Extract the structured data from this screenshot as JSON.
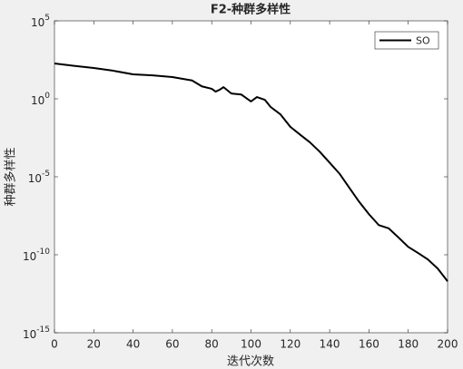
{
  "chart_data": {
    "type": "line",
    "title": "F2-种群多样性",
    "x_label": "迭代次数",
    "y_label": "种群多样性",
    "log_y": true,
    "legend_position": "upper right",
    "xlim": [
      0,
      200
    ],
    "xticks": [
      0,
      20,
      40,
      60,
      80,
      100,
      120,
      140,
      160,
      180,
      200
    ],
    "ylim": [
      1e-15,
      100000
    ],
    "yticks": [
      {
        "value": 1e-15,
        "label": "10^-15"
      },
      {
        "value": 1e-10,
        "label": "10^-10"
      },
      {
        "value": 1e-05,
        "label": "10^-5"
      },
      {
        "value": 1,
        "label": "10^0"
      },
      {
        "value": 100000,
        "label": "10^5"
      }
    ],
    "x": [
      0,
      10,
      20,
      30,
      40,
      50,
      60,
      70,
      75,
      80,
      82,
      84,
      86,
      90,
      95,
      100,
      103,
      107,
      110,
      115,
      120,
      125,
      130,
      135,
      140,
      145,
      150,
      155,
      160,
      165,
      170,
      175,
      180,
      185,
      190,
      195,
      200
    ],
    "series": [
      {
        "name": "SO",
        "color": "#000000",
        "values": [
          186,
          130,
          95,
          63,
          37,
          32,
          25,
          15,
          6.3,
          4.4,
          2.9,
          3.8,
          5.6,
          2.2,
          1.9,
          0.68,
          1.3,
          0.87,
          0.3,
          0.1,
          0.016,
          0.005,
          0.0016,
          0.0004,
          8e-05,
          1.6e-05,
          2e-06,
          2.5e-07,
          4e-08,
          8e-09,
          5e-09,
          1.3e-09,
          3.2e-10,
          1.3e-10,
          5e-11,
          1.3e-11,
          2e-12
        ]
      }
    ]
  }
}
